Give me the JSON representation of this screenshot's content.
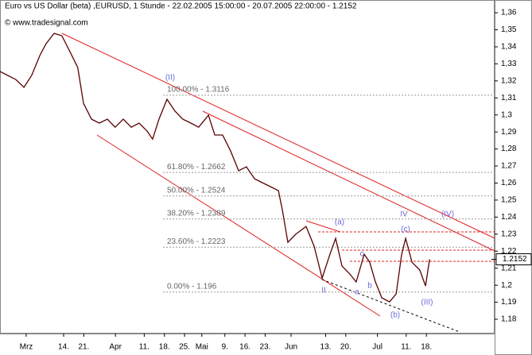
{
  "chart_data": {
    "type": "line",
    "title": "Euro vs US Dollar (beta) ,EURUSD, 1 Stunde - 22.02.2005 15:00:00 - 20.07.2005 22:00:00 - 1.2152",
    "subtitle": "© www.tradesignal.com",
    "xlim": [
      50.9,
      222.7
    ],
    "xticks": [
      {
        "value": 60,
        "label": "Mrz"
      },
      {
        "value": 73,
        "label": "14."
      },
      {
        "value": 80,
        "label": "21."
      },
      {
        "value": 91,
        "label": "Apr"
      },
      {
        "value": 101,
        "label": "11."
      },
      {
        "value": 108,
        "label": "18."
      },
      {
        "value": 115,
        "label": "25."
      },
      {
        "value": 121,
        "label": "Mai"
      },
      {
        "value": 129,
        "label": "9."
      },
      {
        "value": 136,
        "label": "16."
      },
      {
        "value": 143,
        "label": "23."
      },
      {
        "value": 152,
        "label": "Jun"
      },
      {
        "value": 164,
        "label": "13."
      },
      {
        "value": 171,
        "label": "20."
      },
      {
        "value": 182,
        "label": "Jul"
      },
      {
        "value": 192,
        "label": "11."
      },
      {
        "value": 199,
        "label": "18."
      }
    ],
    "ylim": [
      1.1716,
      1.3675
    ],
    "yticks": [
      {
        "value": 1.36,
        "label": "1,36"
      },
      {
        "value": 1.35,
        "label": "1,35"
      },
      {
        "value": 1.34,
        "label": "1,34"
      },
      {
        "value": 1.33,
        "label": "1,33"
      },
      {
        "value": 1.32,
        "label": "1,32"
      },
      {
        "value": 1.31,
        "label": "1,31"
      },
      {
        "value": 1.3,
        "label": "1,3"
      },
      {
        "value": 1.29,
        "label": "1,29"
      },
      {
        "value": 1.28,
        "label": "1,28"
      },
      {
        "value": 1.27,
        "label": "1,27"
      },
      {
        "value": 1.26,
        "label": "1,26"
      },
      {
        "value": 1.25,
        "label": "1,25"
      },
      {
        "value": 1.24,
        "label": "1,24"
      },
      {
        "value": 1.23,
        "label": "1,23"
      },
      {
        "value": 1.22,
        "label": "1,22"
      },
      {
        "value": 1.21,
        "label": "1,21"
      },
      {
        "value": 1.2,
        "label": "1,2"
      },
      {
        "value": 1.19,
        "label": "1,19"
      },
      {
        "value": 1.18,
        "label": "1,18"
      }
    ],
    "grid": false,
    "series": [
      {
        "name": "EURUSD",
        "color": "#5a0000",
        "x": [
          50.9,
          53.6,
          56.4,
          59.2,
          61.9,
          64.7,
          66.9,
          69.7,
          72.4,
          75.2,
          77.9,
          79.9,
          82.7,
          85.4,
          88.2,
          90.9,
          93.7,
          96.5,
          99.2,
          102.0,
          103.9,
          106.1,
          108.9,
          111.7,
          114.4,
          117.2,
          119.9,
          123.3,
          125.5,
          128.2,
          131.0,
          133.8,
          136.5,
          139.3,
          142.0,
          144.8,
          147.6,
          149.0,
          150.9,
          153.6,
          157.2,
          160.0,
          162.8,
          165.5,
          167.5,
          169.7,
          172.4,
          174.6,
          177.4,
          179.3,
          181.3,
          183.5,
          186.2,
          188.5,
          190.4,
          191.8,
          194.0,
          196.7,
          198.7,
          200.1
        ],
        "values": [
          1.3255,
          1.3232,
          1.3208,
          1.3162,
          1.3232,
          1.3348,
          1.3418,
          1.3479,
          1.3465,
          1.3371,
          1.3278,
          1.3068,
          1.2975,
          1.2952,
          1.2975,
          1.2928,
          1.2975,
          1.2928,
          1.2952,
          1.2905,
          1.2858,
          1.2975,
          1.3092,
          1.3022,
          1.2975,
          1.2952,
          1.2928,
          1.2998,
          1.2882,
          1.2882,
          1.2788,
          1.2672,
          1.2695,
          1.2625,
          1.2602,
          1.2579,
          1.2555,
          1.2439,
          1.2252,
          1.2299,
          1.2345,
          1.2229,
          1.2042,
          1.2182,
          1.2275,
          1.2112,
          1.2066,
          1.2019,
          1.2182,
          1.2135,
          1.2019,
          1.1926,
          1.1902,
          1.1949,
          1.2182,
          1.2275,
          1.2135,
          1.2089,
          1.1996,
          1.2152
        ]
      }
    ],
    "last_price": {
      "value": 1.2152,
      "label": "1.2152"
    },
    "fib_levels": [
      {
        "value": 1.3116,
        "label": "100.00% - 1.3116"
      },
      {
        "value": 1.2662,
        "label": "61.80% - 1.2662"
      },
      {
        "value": 1.2524,
        "label": "50.00% - 1.2524"
      },
      {
        "value": 1.2389,
        "label": "38.20% - 1.2389"
      },
      {
        "value": 1.2223,
        "label": "23.60% - 1.2223"
      },
      {
        "value": 1.196,
        "label": "0.00% - 1.196"
      }
    ],
    "wave_labels": [
      "(II)",
      "(a)",
      "(c)",
      "(b)",
      "(III)",
      "IV",
      "(IV)",
      "II",
      "a",
      "b",
      "c"
    ]
  }
}
